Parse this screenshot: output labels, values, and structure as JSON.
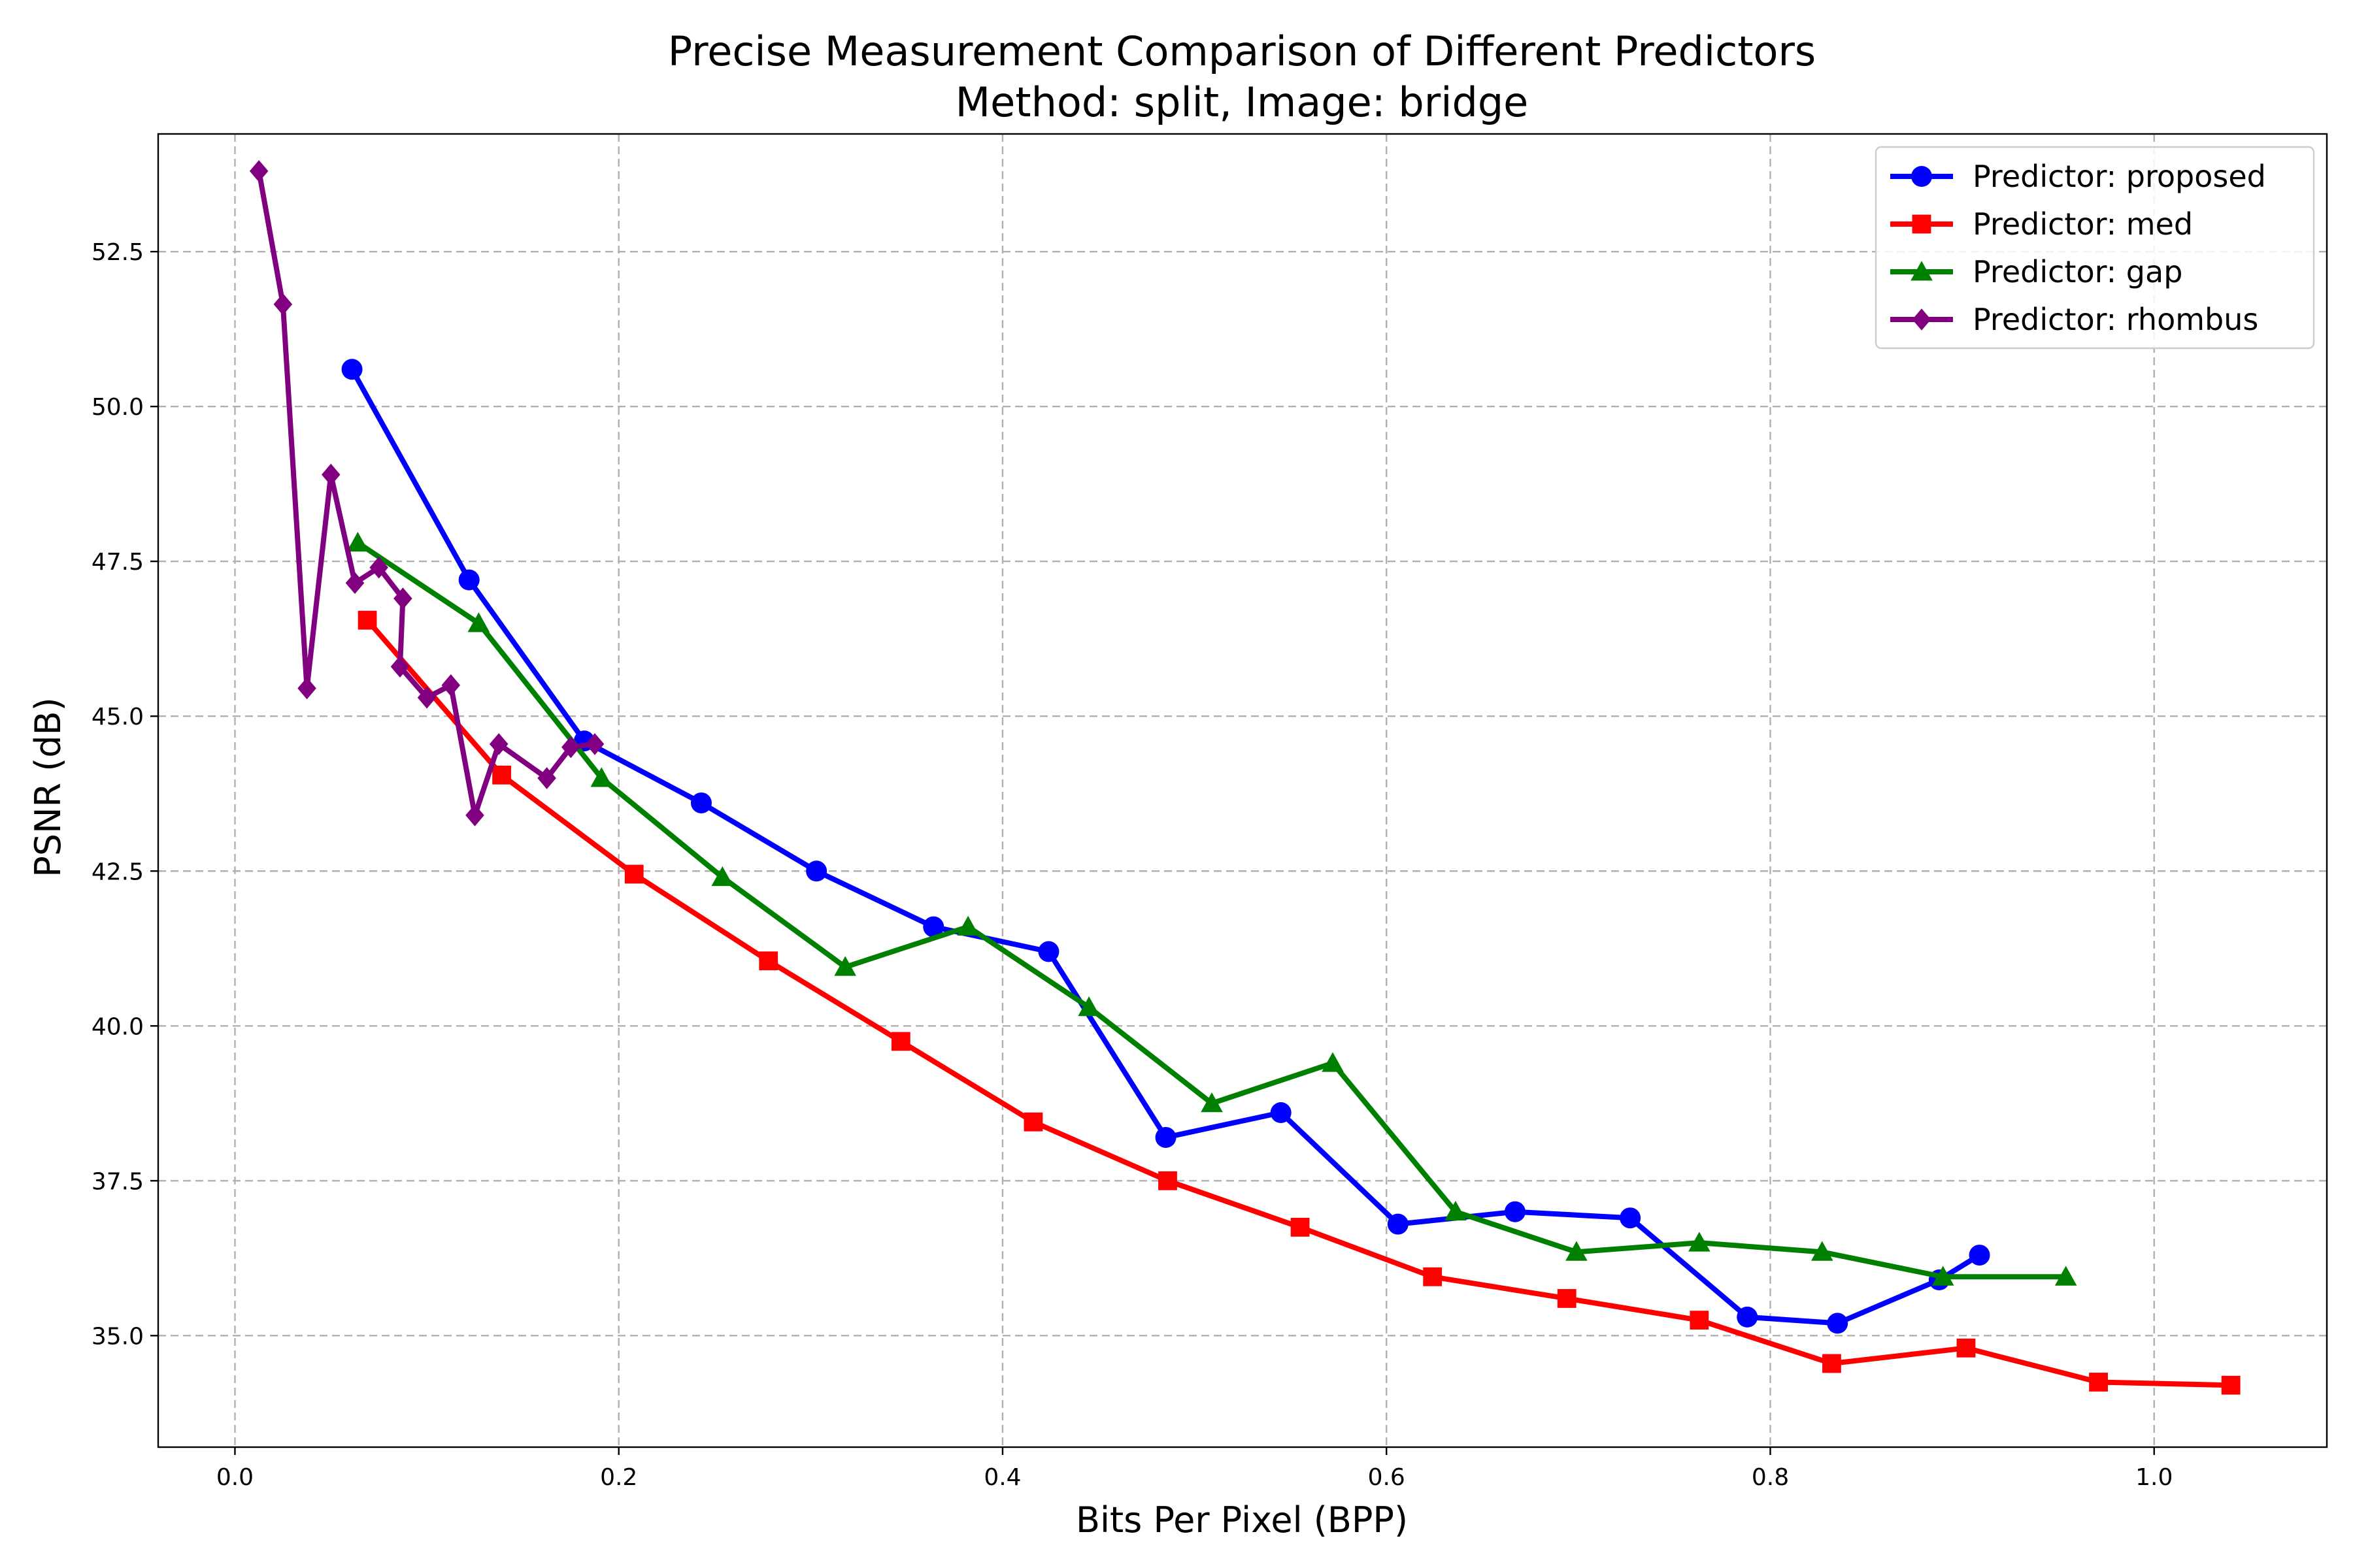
{
  "chart_data": {
    "type": "line",
    "title": "Precise Measurement Comparison of Different Predictors",
    "subtitle": "Method: split, Image: bridge",
    "xlabel": "Bits Per Pixel (BPP)",
    "ylabel": "PSNR (dB)",
    "xlim": [
      -0.04,
      1.09
    ],
    "ylim": [
      33.2,
      54.4
    ],
    "xticks": [
      0.0,
      0.2,
      0.4,
      0.6,
      0.8,
      1.0
    ],
    "xtick_labels": [
      "0.0",
      "0.2",
      "0.4",
      "0.6",
      "0.8",
      "1.0"
    ],
    "yticks": [
      35.0,
      37.5,
      40.0,
      42.5,
      45.0,
      47.5,
      50.0,
      52.5
    ],
    "ytick_labels": [
      "35.0",
      "37.5",
      "40.0",
      "42.5",
      "45.0",
      "47.5",
      "50.0",
      "52.5"
    ],
    "grid": true,
    "legend_position": "top-right",
    "series": [
      {
        "name": "Predictor: proposed",
        "color": "#0000ff",
        "marker": "circle",
        "x": [
          0.061,
          0.122,
          0.182,
          0.243,
          0.303,
          0.364,
          0.424,
          0.485,
          0.545,
          0.606,
          0.667,
          0.727,
          0.788,
          0.835,
          0.888,
          0.909
        ],
        "y": [
          50.6,
          47.2,
          44.6,
          43.6,
          42.5,
          41.6,
          41.2,
          38.2,
          38.6,
          36.8,
          37.0,
          36.9,
          35.3,
          35.2,
          35.9,
          36.3
        ]
      },
      {
        "name": "Predictor: med",
        "color": "#ff0000",
        "marker": "square",
        "x": [
          0.069,
          0.139,
          0.208,
          0.278,
          0.347,
          0.416,
          0.486,
          0.555,
          0.624,
          0.694,
          0.763,
          0.832,
          0.902,
          0.971,
          1.04
        ],
        "y": [
          46.55,
          44.05,
          42.45,
          41.05,
          39.75,
          38.45,
          37.5,
          36.75,
          35.95,
          35.6,
          35.25,
          34.55,
          34.8,
          34.25,
          34.2
        ]
      },
      {
        "name": "Predictor: gap",
        "color": "#008000",
        "marker": "triangle",
        "x": [
          0.064,
          0.127,
          0.191,
          0.254,
          0.318,
          0.382,
          0.445,
          0.509,
          0.572,
          0.636,
          0.699,
          0.763,
          0.827,
          0.89,
          0.954
        ],
        "y": [
          47.8,
          46.5,
          44.0,
          42.4,
          40.95,
          41.6,
          40.3,
          38.75,
          39.4,
          37.0,
          36.35,
          36.5,
          36.35,
          35.95,
          35.95
        ]
      },
      {
        "name": "Predictor: rhombus",
        "color": "#800080",
        "marker": "diamond",
        "x": [
          0.0125,
          0.025,
          0.0375,
          0.05,
          0.0625,
          0.075,
          0.0875,
          0.086,
          0.1,
          0.1125,
          0.125,
          0.1375,
          0.1625,
          0.175,
          0.1875
        ],
        "y": [
          53.8,
          51.65,
          45.45,
          48.9,
          47.15,
          47.4,
          46.9,
          45.8,
          45.3,
          45.5,
          43.4,
          44.55,
          44.0,
          44.5,
          44.55
        ]
      }
    ]
  }
}
